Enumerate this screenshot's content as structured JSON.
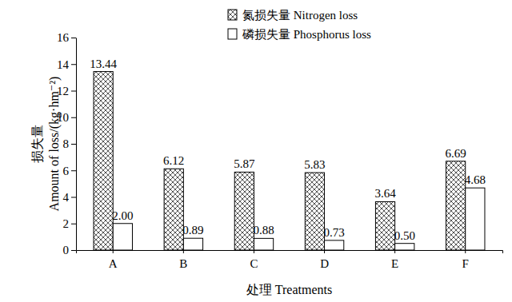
{
  "chart_data": {
    "type": "bar",
    "categories": [
      "A",
      "B",
      "C",
      "D",
      "E",
      "F"
    ],
    "series": [
      {
        "name": "氮损失量 Nitrogen loss",
        "color": "#555555",
        "values": [
          13.44,
          6.12,
          5.87,
          5.83,
          3.64,
          6.69
        ]
      },
      {
        "name": "磷损失量 Phosphorus loss",
        "color": "#ffffff",
        "values": [
          2.0,
          0.89,
          0.88,
          0.73,
          0.5,
          4.68
        ],
        "value_labels": [
          "2.00",
          "0.89",
          "0.88",
          "0.73",
          "0.50",
          "4.68"
        ]
      }
    ],
    "x_label": "处理 Treatments",
    "y_label": [
      "损失量",
      "Amount of loss/(kg·hm⁻²)"
    ],
    "ylim": [
      0,
      16
    ],
    "yticks": [
      0,
      2,
      4,
      6,
      8,
      10,
      12,
      14,
      16
    ],
    "legend": "upper right",
    "data_labels": true,
    "grid": false
  }
}
